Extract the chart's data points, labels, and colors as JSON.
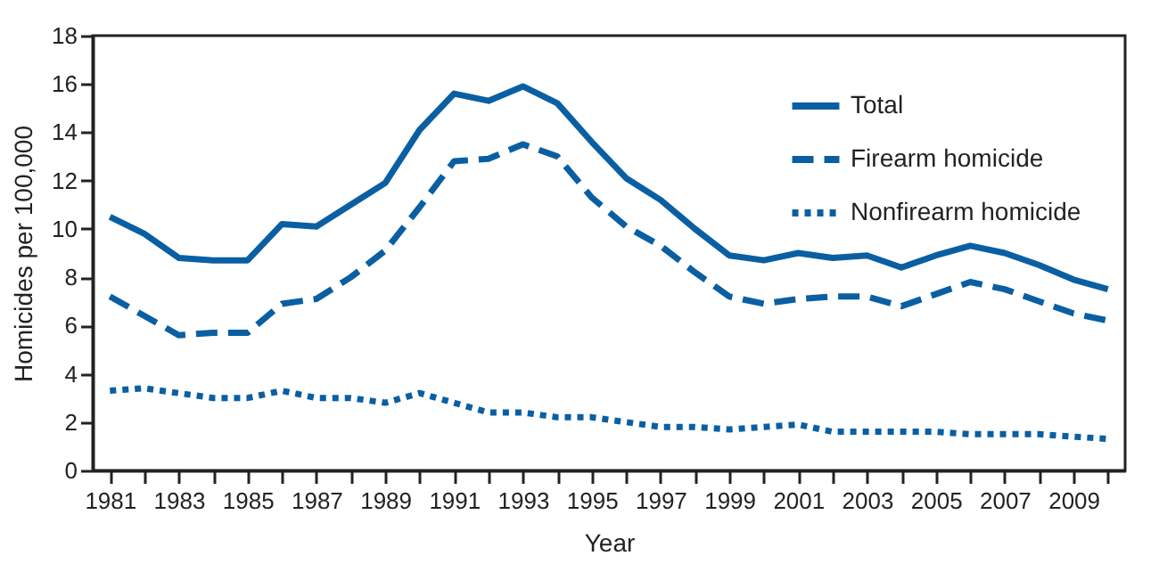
{
  "chart_data": {
    "type": "line",
    "xlabel": "Year",
    "ylabel": "Homicides per 100,000",
    "x": [
      1981,
      1982,
      1983,
      1984,
      1985,
      1986,
      1987,
      1988,
      1989,
      1990,
      1991,
      1992,
      1993,
      1994,
      1995,
      1996,
      1997,
      1998,
      1999,
      2000,
      2001,
      2002,
      2003,
      2004,
      2005,
      2006,
      2007,
      2008,
      2009,
      2010
    ],
    "series": [
      {
        "name": "Total",
        "color": "#0a5fa3",
        "line_style": "solid",
        "values": [
          10.5,
          9.8,
          8.8,
          8.7,
          8.7,
          10.2,
          10.1,
          11.0,
          11.9,
          14.1,
          15.6,
          15.3,
          15.9,
          15.2,
          13.6,
          12.1,
          11.2,
          10.0,
          8.9,
          8.7,
          9.0,
          8.8,
          8.9,
          8.4,
          8.9,
          9.3,
          9.0,
          8.5,
          7.9,
          7.5
        ]
      },
      {
        "name": "Firearm homicide",
        "color": "#0a5fa3",
        "line_style": "dashed",
        "values": [
          7.2,
          6.4,
          5.6,
          5.7,
          5.7,
          6.9,
          7.1,
          8.0,
          9.1,
          10.9,
          12.8,
          12.9,
          13.5,
          13.0,
          11.3,
          10.1,
          9.3,
          8.2,
          7.2,
          6.9,
          7.1,
          7.2,
          7.2,
          6.8,
          7.3,
          7.8,
          7.5,
          7.0,
          6.5,
          6.2
        ]
      },
      {
        "name": "Nonfirearm homicide",
        "color": "#0a5fa3",
        "line_style": "dotted",
        "values": [
          3.3,
          3.4,
          3.2,
          3.0,
          3.0,
          3.3,
          3.0,
          3.0,
          2.8,
          3.2,
          2.8,
          2.4,
          2.4,
          2.2,
          2.2,
          2.0,
          1.8,
          1.8,
          1.7,
          1.8,
          1.9,
          1.6,
          1.6,
          1.6,
          1.6,
          1.5,
          1.5,
          1.5,
          1.4,
          1.3
        ]
      }
    ],
    "xlim": [
      1980.5,
      2010.5
    ],
    "xticks": [
      1981,
      {
        "value": 1982,
        "label": null
      },
      1983,
      {
        "value": 1984,
        "label": null
      },
      1985,
      {
        "value": 1986,
        "label": null
      },
      1987,
      {
        "value": 1988,
        "label": null
      },
      1989,
      {
        "value": 1990,
        "label": null
      },
      1991,
      {
        "value": 1992,
        "label": null
      },
      1993,
      {
        "value": 1994,
        "label": null
      },
      1995,
      {
        "value": 1996,
        "label": null
      },
      1997,
      {
        "value": 1998,
        "label": null
      },
      1999,
      {
        "value": 2000,
        "label": null
      },
      2001,
      {
        "value": 2002,
        "label": null
      },
      2003,
      {
        "value": 2004,
        "label": null
      },
      2005,
      {
        "value": 2006,
        "label": null
      },
      2007,
      {
        "value": 2008,
        "label": null
      },
      2009,
      {
        "value": 2010,
        "label": null
      }
    ],
    "ylim": [
      0,
      18
    ],
    "yticks": [
      0,
      2,
      4,
      6,
      8,
      10,
      12,
      14,
      16,
      18
    ],
    "grid": false,
    "legend": "top right",
    "marker": "none"
  }
}
